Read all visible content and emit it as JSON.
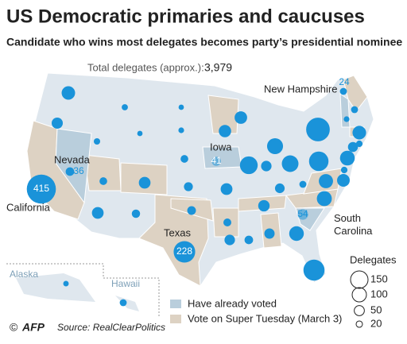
{
  "title": "US Democratic primaries and caucuses",
  "subtitle": "Candidate who wins most delegates becomes party’s presidential nominee",
  "total_label": "Total delegates (approx.):",
  "total": "3,979",
  "states": [
    {
      "name": "California",
      "delegates": 415
    },
    {
      "name": "Nevada",
      "delegates": 36
    },
    {
      "name": "Iowa",
      "delegates": 41
    },
    {
      "name": "New Hampshire",
      "delegates": 24
    },
    {
      "name": "South Carolina",
      "delegates": 54
    },
    {
      "name": "Texas",
      "delegates": 228
    }
  ],
  "bubbles": [
    89,
    61,
    19,
    20,
    14,
    14,
    16,
    29,
    67,
    67,
    34,
    29,
    39,
    37,
    75,
    77,
    125,
    155,
    54,
    136,
    46,
    64,
    31,
    54,
    36,
    52,
    105,
    219,
    110,
    99,
    24,
    186,
    274,
    24,
    16,
    91,
    49,
    21,
    107,
    21,
    79,
    68,
    15,
    24
  ],
  "insets": [
    "Alaska",
    "Hawaii"
  ],
  "legend": {
    "items": [
      "Have already voted",
      "Vote on Super Tuesday (March 3)"
    ],
    "size_title": "Delegates",
    "sizes": [
      150,
      100,
      50,
      20
    ]
  },
  "credit": "©",
  "logo": "AFP",
  "source": "Source: RealClearPolitics"
}
